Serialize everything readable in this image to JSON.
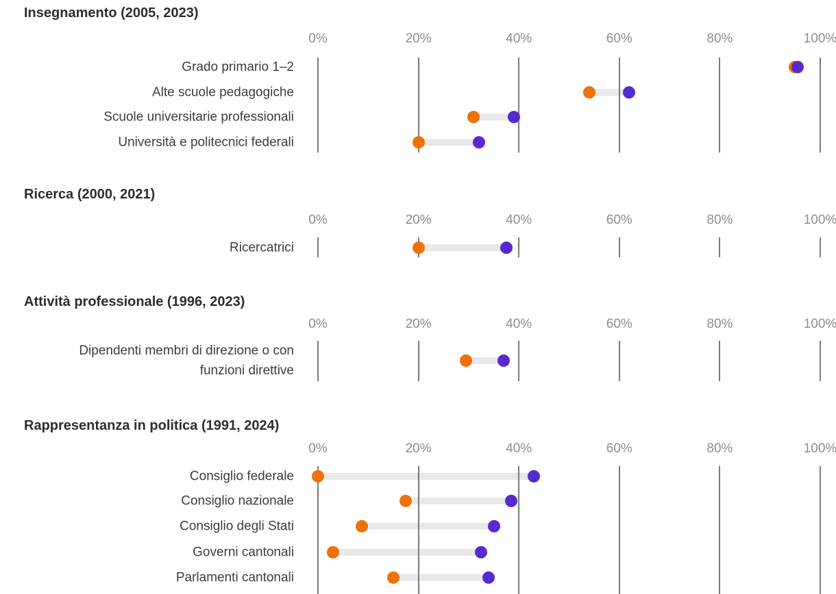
{
  "colors": {
    "start_dot": "#ee7109",
    "end_dot": "#552bd1",
    "connector": "#e8e8e8",
    "gridline": "#7a7a7a",
    "axis_text": "#8d8d8d",
    "label_text": "#3c3c3c",
    "title_text": "#2d2d2d"
  },
  "chart_data": [
    {
      "type": "dumbbell",
      "title": "Insegnamento (2005, 2023)",
      "start_year": "2005",
      "end_year": "2023",
      "unit": "%",
      "xlim": [
        0,
        100
      ],
      "ticks": [
        0,
        20,
        40,
        60,
        80,
        100
      ],
      "tick_labels": [
        "0%",
        "20%",
        "40%",
        "60%",
        "80%",
        "100%"
      ],
      "rows": [
        {
          "label": "Grado primario 1–2",
          "start": 95,
          "end": 95.5
        },
        {
          "label": "Alte scuole pedagogiche",
          "start": 54,
          "end": 62
        },
        {
          "label": "Scuole universitarie professionali",
          "start": 31,
          "end": 39
        },
        {
          "label": "Università e politecnici federali",
          "start": 20,
          "end": 32
        }
      ]
    },
    {
      "type": "dumbbell",
      "title": "Ricerca (2000, 2021)",
      "start_year": "2000",
      "end_year": "2021",
      "unit": "%",
      "xlim": [
        0,
        100
      ],
      "ticks": [
        0,
        20,
        40,
        60,
        80,
        100
      ],
      "tick_labels": [
        "0%",
        "20%",
        "40%",
        "60%",
        "80%",
        "100%"
      ],
      "rows": [
        {
          "label": "Ricercatrici",
          "start": 20,
          "end": 37.5
        }
      ]
    },
    {
      "type": "dumbbell",
      "title": "Attività professionale (1996, 2023)",
      "start_year": "1996",
      "end_year": "2023",
      "unit": "%",
      "xlim": [
        0,
        100
      ],
      "ticks": [
        0,
        20,
        40,
        60,
        80,
        100
      ],
      "tick_labels": [
        "0%",
        "20%",
        "40%",
        "60%",
        "80%",
        "100%"
      ],
      "rows": [
        {
          "label": "Dipendenti membri di direzione o con\nfunzioni direttive",
          "start": 29.5,
          "end": 37
        }
      ]
    },
    {
      "type": "dumbbell",
      "title": "Rappresentanza in politica (1991, 2024)",
      "start_year": "1991",
      "end_year": "2024",
      "unit": "%",
      "xlim": [
        0,
        100
      ],
      "ticks": [
        0,
        20,
        40,
        60,
        80,
        100
      ],
      "tick_labels": [
        "0%",
        "20%",
        "40%",
        "60%",
        "80%",
        "100%"
      ],
      "rows": [
        {
          "label": "Consiglio federale",
          "start": 0,
          "end": 43
        },
        {
          "label": "Consiglio nazionale",
          "start": 17.5,
          "end": 38.5
        },
        {
          "label": "Consiglio degli Stati",
          "start": 8.7,
          "end": 35
        },
        {
          "label": "Governi cantonali",
          "start": 3,
          "end": 32.5
        },
        {
          "label": "Parlamenti cantonali",
          "start": 15,
          "end": 34
        }
      ]
    }
  ]
}
